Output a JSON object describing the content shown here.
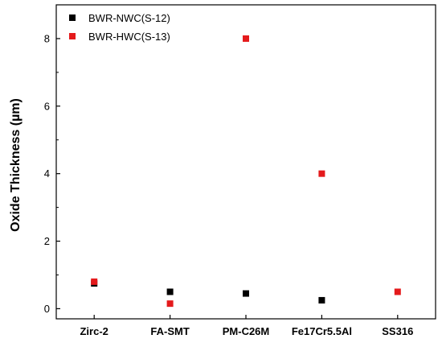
{
  "chart_data": {
    "type": "scatter",
    "categories": [
      "Zirc-2",
      "FA-SMT",
      "PM-C26M",
      "Fe17Cr5.5Al",
      "SS316"
    ],
    "series": [
      {
        "name": "BWR-NWC(S-12)",
        "color": "#000000",
        "values": [
          0.75,
          0.5,
          0.45,
          0.25,
          null
        ]
      },
      {
        "name": "BWR-HWC(S-13)",
        "color": "#e41a1c",
        "values": [
          0.8,
          0.15,
          8.0,
          4.0,
          0.5
        ]
      }
    ],
    "title": "",
    "xlabel": "",
    "ylabel": "Oxide Thickness (µm)",
    "ylim": [
      -0.3,
      9.0
    ],
    "yticks": [
      0,
      2,
      4,
      6,
      8
    ],
    "legend": "top-left",
    "grid": false
  }
}
